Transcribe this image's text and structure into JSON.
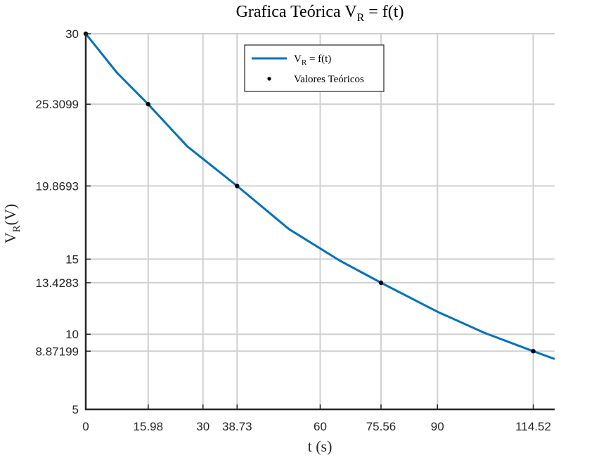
{
  "chart_data": {
    "type": "line",
    "title": {
      "main": "Grafica Teórica V",
      "sub": "R",
      "rest": " = f(t)"
    },
    "xlabel": "t (s)",
    "ylabel": {
      "main": "V",
      "sub": "R",
      "rest": "(V)"
    },
    "xlim": [
      0,
      120
    ],
    "ylim": [
      5,
      30
    ],
    "xticks": [
      0,
      15.98,
      30,
      38.73,
      60,
      75.56,
      90,
      114.52
    ],
    "xtick_labels": [
      "0",
      "15.98",
      "30",
      "38.73",
      "60",
      "75.56",
      "90",
      "114.52"
    ],
    "yticks": [
      5,
      8.87199,
      10,
      13.4283,
      15,
      19.8693,
      25.3099,
      30
    ],
    "ytick_labels": [
      "5",
      "8.87199",
      "10",
      "13.4283",
      "15",
      "19.8693",
      "25.3099",
      "30"
    ],
    "grid": true,
    "legend_position": "top-center",
    "series": [
      {
        "name": {
          "main": "V",
          "sub": "R",
          "rest": " = f(t)"
        },
        "kind": "line",
        "color": "#0072BD",
        "x": [
          0,
          8,
          15.98,
          26,
          38.73,
          52,
          65,
          75.56,
          90,
          102,
          114.52,
          120
        ],
        "y": [
          30,
          27.4,
          25.3099,
          22.5,
          19.8693,
          17.0,
          14.9,
          13.4283,
          11.5,
          10.1,
          8.87199,
          8.35
        ]
      },
      {
        "name": "Valores Teóricos",
        "kind": "points",
        "color": "#000000",
        "x": [
          0,
          15.98,
          38.73,
          75.56,
          114.52
        ],
        "y": [
          30,
          25.3099,
          19.8693,
          13.4283,
          8.87199
        ]
      }
    ]
  }
}
